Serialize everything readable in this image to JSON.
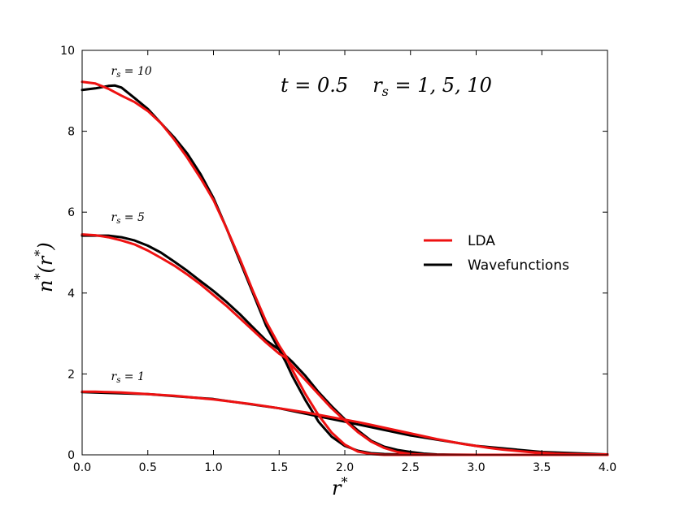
{
  "chart_data": {
    "type": "line",
    "title": "t = 0.5    r_s = 1, 5, 10",
    "title_parts": {
      "t_label": "t = 0.5",
      "rs_label": "r",
      "rs_sub": "s",
      "rs_values": " = 1, 5, 10"
    },
    "xlabel": "r*",
    "xlabel_parts": {
      "base": "r",
      "sup": "*"
    },
    "ylabel": "n*(r*)",
    "ylabel_parts": {
      "n": "n",
      "sup1": "*",
      "open": "(",
      "r": "r",
      "sup2": "*",
      "close": ")"
    },
    "xlim": [
      0,
      4
    ],
    "ylim": [
      0,
      10
    ],
    "xticks": [
      "0.0",
      "0.5",
      "1.0",
      "1.5",
      "2.0",
      "2.5",
      "3.0",
      "3.5",
      "4.0"
    ],
    "yticks": [
      "0",
      "2",
      "4",
      "6",
      "8",
      "10"
    ],
    "xtick_values": [
      0,
      0.5,
      1,
      1.5,
      2,
      2.5,
      3,
      3.5,
      4
    ],
    "ytick_values": [
      0,
      2,
      4,
      6,
      8,
      10
    ],
    "legend": {
      "position": "center-right",
      "entries": [
        {
          "label": "LDA",
          "color": "#ee1111"
        },
        {
          "label": "Wavefunctions",
          "color": "#000000"
        }
      ]
    },
    "annotations": [
      {
        "base": "r",
        "sub": "s",
        "text": " = 10",
        "x": 0.22,
        "y": 9.4
      },
      {
        "base": "r",
        "sub": "s",
        "text": " = 5",
        "x": 0.22,
        "y": 5.78
      },
      {
        "base": "r",
        "sub": "s",
        "text": " = 1",
        "x": 0.22,
        "y": 1.85
      }
    ],
    "series": [
      {
        "name": "Wavefunctions r_s=10",
        "color": "#000000",
        "x": [
          0,
          0.1,
          0.2,
          0.25,
          0.3,
          0.4,
          0.5,
          0.6,
          0.7,
          0.8,
          0.9,
          1.0,
          1.1,
          1.2,
          1.3,
          1.4,
          1.5,
          1.55,
          1.6,
          1.7,
          1.8,
          1.9,
          2.0,
          2.1,
          2.2,
          2.3,
          2.4,
          2.6,
          3.0,
          4.0
        ],
        "y": [
          9.02,
          9.06,
          9.12,
          9.13,
          9.08,
          8.82,
          8.55,
          8.2,
          7.85,
          7.45,
          6.95,
          6.35,
          5.6,
          4.8,
          4.0,
          3.2,
          2.6,
          2.3,
          1.95,
          1.35,
          0.82,
          0.45,
          0.22,
          0.1,
          0.04,
          0.02,
          0.01,
          0,
          0,
          0
        ]
      },
      {
        "name": "LDA r_s=10",
        "color": "#ee1111",
        "x": [
          0,
          0.1,
          0.2,
          0.3,
          0.4,
          0.5,
          0.6,
          0.7,
          0.8,
          0.9,
          1.0,
          1.1,
          1.2,
          1.3,
          1.4,
          1.5,
          1.55,
          1.6,
          1.7,
          1.8,
          1.9,
          2.0,
          2.1,
          2.2,
          2.3,
          2.4,
          3.0,
          4.0
        ],
        "y": [
          9.22,
          9.18,
          9.05,
          8.88,
          8.72,
          8.5,
          8.2,
          7.8,
          7.35,
          6.85,
          6.3,
          5.6,
          4.85,
          4.05,
          3.3,
          2.7,
          2.45,
          2.1,
          1.5,
          0.98,
          0.55,
          0.25,
          0.08,
          0.02,
          0,
          0,
          0,
          0
        ]
      },
      {
        "name": "Wavefunctions r_s=5",
        "color": "#000000",
        "x": [
          0,
          0.1,
          0.2,
          0.3,
          0.4,
          0.5,
          0.6,
          0.7,
          0.8,
          0.9,
          1.0,
          1.1,
          1.2,
          1.3,
          1.4,
          1.5,
          1.55,
          1.6,
          1.7,
          1.8,
          1.9,
          2.0,
          2.1,
          2.2,
          2.3,
          2.4,
          2.5,
          2.6,
          2.7,
          2.8,
          3.0,
          4.0
        ],
        "y": [
          5.42,
          5.42,
          5.42,
          5.38,
          5.3,
          5.17,
          5.0,
          4.78,
          4.55,
          4.3,
          4.05,
          3.78,
          3.48,
          3.15,
          2.83,
          2.6,
          2.45,
          2.3,
          1.95,
          1.55,
          1.2,
          0.88,
          0.6,
          0.35,
          0.2,
          0.12,
          0.07,
          0.03,
          0.01,
          0.005,
          0,
          0
        ]
      },
      {
        "name": "LDA r_s=5",
        "color": "#ee1111",
        "x": [
          0,
          0.1,
          0.2,
          0.3,
          0.4,
          0.5,
          0.6,
          0.7,
          0.8,
          0.9,
          1.0,
          1.1,
          1.2,
          1.3,
          1.4,
          1.5,
          1.55,
          1.6,
          1.7,
          1.8,
          1.9,
          2.0,
          2.1,
          2.2,
          2.3,
          2.4,
          2.5,
          2.6,
          2.7,
          3.0,
          4.0
        ],
        "y": [
          5.45,
          5.43,
          5.38,
          5.3,
          5.2,
          5.05,
          4.87,
          4.68,
          4.46,
          4.22,
          3.95,
          3.68,
          3.38,
          3.08,
          2.78,
          2.5,
          2.4,
          2.2,
          1.85,
          1.5,
          1.15,
          0.85,
          0.56,
          0.33,
          0.17,
          0.07,
          0.02,
          0.005,
          0,
          0,
          0
        ]
      },
      {
        "name": "Wavefunctions r_s=1",
        "color": "#000000",
        "x": [
          0,
          0.5,
          1.0,
          1.5,
          2.0,
          2.5,
          3.0,
          3.5,
          4.0
        ],
        "y": [
          1.55,
          1.5,
          1.38,
          1.15,
          0.82,
          0.48,
          0.22,
          0.07,
          0.01
        ]
      },
      {
        "name": "LDA r_s=1",
        "color": "#ee1111",
        "x": [
          0,
          0.1,
          0.2,
          0.3,
          0.4,
          0.5,
          0.6,
          0.7,
          0.8,
          0.9,
          1.0,
          1.1,
          1.2,
          1.3,
          1.4,
          1.5,
          1.6,
          1.7,
          1.8,
          1.9,
          2.0,
          2.1,
          2.2,
          2.3,
          2.4,
          2.5,
          2.6,
          2.7,
          2.8,
          2.9,
          3.0,
          3.1,
          3.2,
          3.3,
          3.4,
          3.5,
          3.6,
          3.7,
          3.8,
          3.9,
          4.0
        ],
        "y": [
          1.56,
          1.56,
          1.55,
          1.54,
          1.52,
          1.5,
          1.48,
          1.46,
          1.43,
          1.4,
          1.37,
          1.33,
          1.29,
          1.25,
          1.2,
          1.15,
          1.1,
          1.05,
          0.99,
          0.93,
          0.87,
          0.81,
          0.74,
          0.67,
          0.6,
          0.53,
          0.46,
          0.39,
          0.33,
          0.27,
          0.22,
          0.17,
          0.13,
          0.1,
          0.07,
          0.05,
          0.03,
          0.02,
          0.015,
          0.01,
          0.01
        ]
      }
    ]
  }
}
